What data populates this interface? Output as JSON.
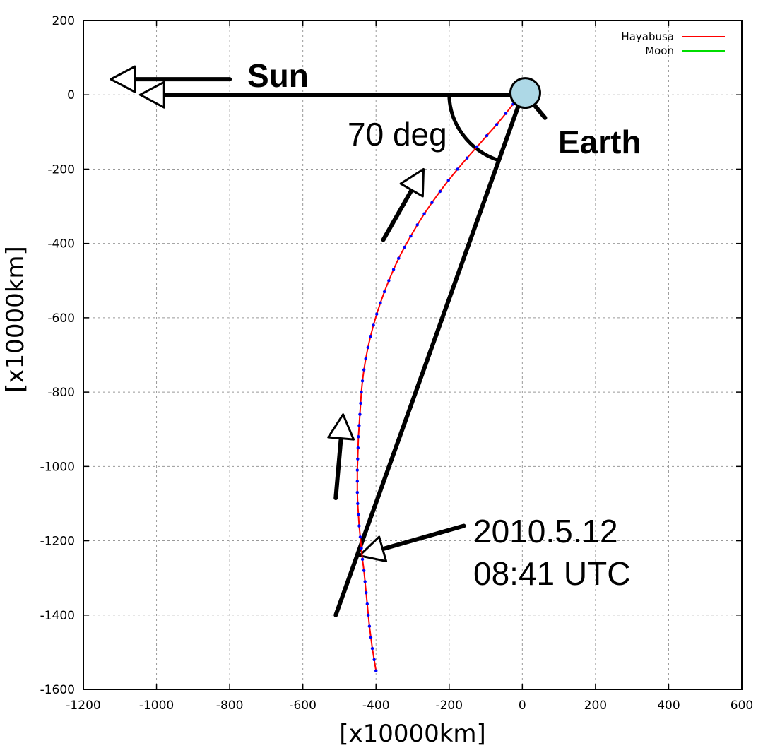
{
  "chart_data": {
    "type": "line",
    "title": "",
    "xlabel": "[x10000km]",
    "ylabel": "[x10000km]",
    "xlim": [
      -1200,
      600
    ],
    "ylim": [
      -1600,
      200
    ],
    "xticks": [
      -1200,
      -1000,
      -800,
      -600,
      -400,
      -200,
      0,
      200,
      400,
      600
    ],
    "yticks": [
      200,
      0,
      -200,
      -400,
      -600,
      -800,
      -1000,
      -1200,
      -1400,
      -1600
    ],
    "grid": true,
    "legend_position": "top-right",
    "series": [
      {
        "name": "Hayabusa",
        "color": "#ff0000",
        "marker_color": "#0000ff",
        "points": [
          [
            -400,
            -1550
          ],
          [
            -405,
            -1520
          ],
          [
            -410,
            -1490
          ],
          [
            -414,
            -1460
          ],
          [
            -418,
            -1430
          ],
          [
            -421,
            -1400
          ],
          [
            -424,
            -1370
          ],
          [
            -427,
            -1340
          ],
          [
            -430,
            -1310
          ],
          [
            -433,
            -1280
          ],
          [
            -437,
            -1250
          ],
          [
            -440,
            -1220
          ],
          [
            -443,
            -1190
          ],
          [
            -446,
            -1160
          ],
          [
            -448,
            -1130
          ],
          [
            -450,
            -1100
          ],
          [
            -451,
            -1070
          ],
          [
            -451,
            -1040
          ],
          [
            -451,
            -1010
          ],
          [
            -450,
            -980
          ],
          [
            -449,
            -950
          ],
          [
            -448,
            -920
          ],
          [
            -446,
            -890
          ],
          [
            -444,
            -860
          ],
          [
            -442,
            -830
          ],
          [
            -440,
            -800
          ],
          [
            -437,
            -770
          ],
          [
            -433,
            -740
          ],
          [
            -428,
            -710
          ],
          [
            -422,
            -680
          ],
          [
            -415,
            -650
          ],
          [
            -407,
            -620
          ],
          [
            -398,
            -590
          ],
          [
            -388,
            -560
          ],
          [
            -377,
            -530
          ],
          [
            -365,
            -500
          ],
          [
            -352,
            -470
          ],
          [
            -338,
            -440
          ],
          [
            -322,
            -410
          ],
          [
            -305,
            -380
          ],
          [
            -287,
            -350
          ],
          [
            -268,
            -320
          ],
          [
            -247,
            -290
          ],
          [
            -225,
            -260
          ],
          [
            -202,
            -230
          ],
          [
            -177,
            -200
          ],
          [
            -151,
            -170
          ],
          [
            -124,
            -140
          ],
          [
            -97,
            -110
          ],
          [
            -70,
            -80
          ],
          [
            -45,
            -50
          ],
          [
            -25,
            -25
          ]
        ]
      },
      {
        "name": "Moon",
        "color": "#00dd00",
        "points": [
          [
            -30,
            0
          ],
          [
            -27,
            12
          ],
          [
            -18,
            20
          ],
          [
            -7,
            22
          ],
          [
            3,
            18
          ],
          [
            7,
            8
          ]
        ]
      }
    ],
    "annotations": {
      "sun_label": "Sun",
      "earth_label": "Earth",
      "angle_label": "70 deg",
      "date_line1": "2010.5.12",
      "date_line2": "08:41 UTC"
    },
    "earth_color": "#add8e6"
  }
}
